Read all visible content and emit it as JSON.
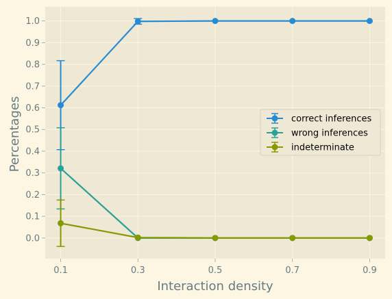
{
  "chart_data": {
    "type": "line",
    "title": "",
    "xlabel": "Interaction density",
    "ylabel": "Percentages",
    "x": [
      0.1,
      0.3,
      0.5,
      0.7,
      0.9
    ],
    "x_ticks": [
      "0.1",
      "0.3",
      "0.5",
      "0.7",
      "0.9"
    ],
    "y_ticks": [
      "0.0",
      "0.1",
      "0.2",
      "0.3",
      "0.4",
      "0.5",
      "0.6",
      "0.7",
      "0.8",
      "0.9",
      "1.0"
    ],
    "xlim": [
      0.06,
      0.94
    ],
    "ylim": [
      -0.095,
      1.065
    ],
    "grid": true,
    "legend_position": "center-right",
    "error_bars": true,
    "series": [
      {
        "name": "correct inferences",
        "color": "#268bd2",
        "values": [
          0.612,
          0.998,
          1.0,
          1.0,
          1.0
        ],
        "err": [
          0.205,
          0.013,
          0.0,
          0.0,
          0.0
        ]
      },
      {
        "name": "wrong inferences",
        "color": "#2aa198",
        "values": [
          0.321,
          0.0,
          0.0,
          0.0,
          0.0
        ],
        "err": [
          0.187,
          0.0,
          0.0,
          0.0,
          0.0
        ]
      },
      {
        "name": "indeterminate",
        "color": "#859900",
        "values": [
          0.068,
          0.002,
          0.0,
          0.0,
          0.0
        ],
        "err": [
          0.107,
          0.0,
          0.0,
          0.0,
          0.0
        ]
      }
    ]
  }
}
